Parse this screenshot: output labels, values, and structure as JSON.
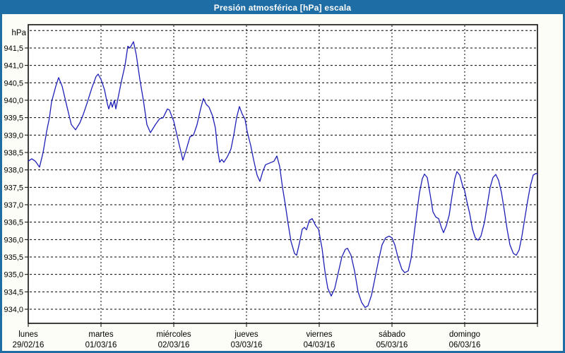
{
  "window": {
    "title": "Presión atmosférica [hPa] escala"
  },
  "colors": {
    "titlebar_bg": "#1f6da5",
    "titlebar_text": "#ffffff",
    "window_bg": "#fbfdf6",
    "plot_bg": "#ffffff",
    "grid": "#000000",
    "line": "#1f1fb8",
    "tick_text": "#000000"
  },
  "chart_data": {
    "type": "line",
    "title": "Presión atmosférica [hPa] escala",
    "unit_label": "hPa",
    "ylabel": "hPa",
    "xlabel": "",
    "grid": {
      "y_min": 934.0,
      "y_max": 942.0,
      "y_step": 0.5,
      "x_day_count": 7,
      "grid_on": true,
      "style": "dashed"
    },
    "ylim_labeled": [
      934.0,
      941.5
    ],
    "yticks": [
      {
        "value": 941.5,
        "label": "941,5"
      },
      {
        "value": 941.0,
        "label": "941,0"
      },
      {
        "value": 940.5,
        "label": "940,5"
      },
      {
        "value": 940.0,
        "label": "940,0"
      },
      {
        "value": 939.5,
        "label": "939,5"
      },
      {
        "value": 939.0,
        "label": "939,0"
      },
      {
        "value": 938.5,
        "label": "938,5"
      },
      {
        "value": 938.0,
        "label": "938,0"
      },
      {
        "value": 937.5,
        "label": "937,5"
      },
      {
        "value": 937.0,
        "label": "937,0"
      },
      {
        "value": 936.5,
        "label": "936,5"
      },
      {
        "value": 936.0,
        "label": "936,0"
      },
      {
        "value": 935.5,
        "label": "935,5"
      },
      {
        "value": 935.0,
        "label": "935,0"
      },
      {
        "value": 934.5,
        "label": "934,5"
      },
      {
        "value": 934.0,
        "label": "934,0"
      }
    ],
    "x_days": [
      {
        "name": "lunes",
        "date": "29/02/16"
      },
      {
        "name": "martes",
        "date": "01/03/16"
      },
      {
        "name": "miércoles",
        "date": "02/03/16"
      },
      {
        "name": "jueves",
        "date": "03/03/16"
      },
      {
        "name": "viernes",
        "date": "04/03/16"
      },
      {
        "name": "sábado",
        "date": "05/03/16"
      },
      {
        "name": "domingo",
        "date": "06/03/16"
      }
    ],
    "series": [
      {
        "name": "Presión atmosférica [hPa]",
        "points": [
          [
            0.0,
            938.25
          ],
          [
            0.049,
            938.32
          ],
          [
            0.097,
            938.25
          ],
          [
            0.155,
            938.08
          ],
          [
            0.204,
            938.5
          ],
          [
            0.252,
            939.1
          ],
          [
            0.291,
            939.5
          ],
          [
            0.32,
            939.95
          ],
          [
            0.379,
            940.4
          ],
          [
            0.417,
            940.65
          ],
          [
            0.466,
            940.4
          ],
          [
            0.534,
            939.8
          ],
          [
            0.592,
            939.3
          ],
          [
            0.65,
            939.15
          ],
          [
            0.709,
            939.35
          ],
          [
            0.757,
            939.6
          ],
          [
            0.806,
            939.9
          ],
          [
            0.874,
            940.35
          ],
          [
            0.932,
            940.68
          ],
          [
            0.961,
            940.75
          ],
          [
            1.0,
            940.6
          ],
          [
            1.049,
            940.3
          ],
          [
            1.087,
            939.9
          ],
          [
            1.107,
            939.75
          ],
          [
            1.136,
            939.95
          ],
          [
            1.155,
            939.8
          ],
          [
            1.184,
            940.0
          ],
          [
            1.204,
            939.75
          ],
          [
            1.243,
            940.15
          ],
          [
            1.282,
            940.55
          ],
          [
            1.33,
            941.0
          ],
          [
            1.369,
            941.55
          ],
          [
            1.398,
            941.5
          ],
          [
            1.447,
            941.68
          ],
          [
            1.485,
            941.3
          ],
          [
            1.534,
            940.6
          ],
          [
            1.583,
            940.0
          ],
          [
            1.631,
            939.3
          ],
          [
            1.68,
            939.07
          ],
          [
            1.748,
            939.3
          ],
          [
            1.806,
            939.47
          ],
          [
            1.854,
            939.5
          ],
          [
            1.913,
            939.75
          ],
          [
            1.942,
            939.72
          ],
          [
            1.971,
            939.55
          ],
          [
            2.0,
            939.4
          ],
          [
            2.039,
            939.05
          ],
          [
            2.078,
            938.7
          ],
          [
            2.126,
            938.28
          ],
          [
            2.175,
            938.6
          ],
          [
            2.223,
            938.95
          ],
          [
            2.272,
            939.0
          ],
          [
            2.32,
            939.3
          ],
          [
            2.369,
            939.75
          ],
          [
            2.408,
            940.05
          ],
          [
            2.447,
            939.88
          ],
          [
            2.485,
            939.8
          ],
          [
            2.534,
            939.55
          ],
          [
            2.573,
            939.2
          ],
          [
            2.602,
            938.6
          ],
          [
            2.631,
            938.22
          ],
          [
            2.66,
            938.3
          ],
          [
            2.689,
            938.22
          ],
          [
            2.738,
            938.38
          ],
          [
            2.786,
            938.6
          ],
          [
            2.825,
            939.0
          ],
          [
            2.864,
            939.5
          ],
          [
            2.903,
            939.82
          ],
          [
            2.942,
            939.6
          ],
          [
            2.981,
            939.45
          ],
          [
            3.01,
            939.1
          ],
          [
            3.058,
            938.7
          ],
          [
            3.097,
            938.3
          ],
          [
            3.146,
            937.85
          ],
          [
            3.184,
            937.67
          ],
          [
            3.223,
            937.95
          ],
          [
            3.262,
            938.15
          ],
          [
            3.32,
            938.2
          ],
          [
            3.379,
            938.25
          ],
          [
            3.417,
            938.4
          ],
          [
            3.456,
            938.1
          ],
          [
            3.495,
            937.5
          ],
          [
            3.534,
            937.0
          ],
          [
            3.573,
            936.45
          ],
          [
            3.612,
            935.95
          ],
          [
            3.66,
            935.6
          ],
          [
            3.689,
            935.55
          ],
          [
            3.728,
            935.9
          ],
          [
            3.767,
            936.3
          ],
          [
            3.796,
            936.35
          ],
          [
            3.825,
            936.28
          ],
          [
            3.864,
            936.55
          ],
          [
            3.903,
            936.6
          ],
          [
            3.951,
            936.4
          ],
          [
            3.99,
            936.3
          ],
          [
            4.039,
            935.75
          ],
          [
            4.078,
            935.1
          ],
          [
            4.117,
            934.6
          ],
          [
            4.165,
            934.38
          ],
          [
            4.214,
            934.6
          ],
          [
            4.262,
            935.05
          ],
          [
            4.311,
            935.5
          ],
          [
            4.359,
            935.72
          ],
          [
            4.388,
            935.75
          ],
          [
            4.437,
            935.55
          ],
          [
            4.485,
            935.1
          ],
          [
            4.534,
            934.5
          ],
          [
            4.583,
            934.2
          ],
          [
            4.631,
            934.05
          ],
          [
            4.67,
            934.1
          ],
          [
            4.718,
            934.4
          ],
          [
            4.767,
            934.9
          ],
          [
            4.816,
            935.4
          ],
          [
            4.864,
            935.85
          ],
          [
            4.913,
            936.05
          ],
          [
            4.961,
            936.1
          ],
          [
            5.0,
            936.05
          ],
          [
            5.039,
            935.85
          ],
          [
            5.087,
            935.45
          ],
          [
            5.136,
            935.15
          ],
          [
            5.175,
            935.05
          ],
          [
            5.223,
            935.1
          ],
          [
            5.262,
            935.45
          ],
          [
            5.301,
            936.1
          ],
          [
            5.34,
            936.75
          ],
          [
            5.379,
            937.35
          ],
          [
            5.417,
            937.75
          ],
          [
            5.447,
            937.88
          ],
          [
            5.485,
            937.78
          ],
          [
            5.524,
            937.3
          ],
          [
            5.563,
            936.8
          ],
          [
            5.602,
            936.65
          ],
          [
            5.641,
            936.6
          ],
          [
            5.68,
            936.35
          ],
          [
            5.709,
            936.2
          ],
          [
            5.748,
            936.4
          ],
          [
            5.786,
            936.7
          ],
          [
            5.825,
            937.25
          ],
          [
            5.864,
            937.75
          ],
          [
            5.893,
            937.95
          ],
          [
            5.932,
            937.85
          ],
          [
            5.971,
            937.55
          ],
          [
            6.0,
            937.4
          ],
          [
            6.029,
            937.1
          ],
          [
            6.068,
            936.75
          ],
          [
            6.107,
            936.3
          ],
          [
            6.146,
            936.05
          ],
          [
            6.184,
            935.98
          ],
          [
            6.223,
            936.1
          ],
          [
            6.272,
            936.5
          ],
          [
            6.311,
            937.0
          ],
          [
            6.35,
            937.5
          ],
          [
            6.388,
            937.78
          ],
          [
            6.427,
            937.87
          ],
          [
            6.466,
            937.7
          ],
          [
            6.505,
            937.35
          ],
          [
            6.544,
            936.85
          ],
          [
            6.583,
            936.3
          ],
          [
            6.621,
            935.85
          ],
          [
            6.67,
            935.6
          ],
          [
            6.709,
            935.55
          ],
          [
            6.748,
            935.7
          ],
          [
            6.786,
            936.1
          ],
          [
            6.825,
            936.6
          ],
          [
            6.864,
            937.1
          ],
          [
            6.903,
            937.55
          ],
          [
            6.942,
            937.85
          ],
          [
            6.981,
            937.9
          ],
          [
            7.0,
            937.88
          ]
        ]
      }
    ]
  }
}
